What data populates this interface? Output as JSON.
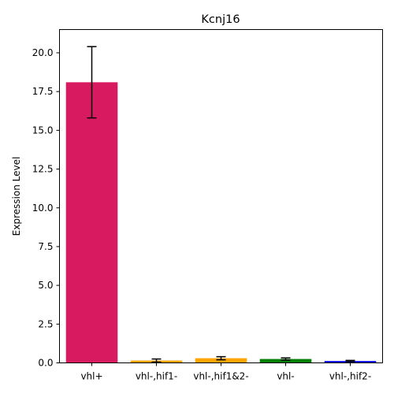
{
  "chart_data": {
    "type": "bar",
    "title": "Kcnj16",
    "xlabel": "",
    "ylabel": "Expression Level",
    "categories": [
      "vhl+",
      "vhl-,hif1-",
      "vhl-,hif1&2-",
      "vhl-",
      "vhl-,hif2-"
    ],
    "values": [
      18.1,
      0.15,
      0.3,
      0.25,
      0.12
    ],
    "errors": [
      2.3,
      0.1,
      0.1,
      0.07,
      0.04
    ],
    "colors": [
      "#d81b60",
      "#ffa500",
      "#ffa500",
      "#008000",
      "#0000ff"
    ],
    "ylim": [
      0,
      21.5
    ],
    "yticks": [
      0.0,
      2.5,
      5.0,
      7.5,
      10.0,
      12.5,
      15.0,
      17.5,
      20.0
    ],
    "ytick_labels": [
      "0.0",
      "2.5",
      "5.0",
      "7.5",
      "10.0",
      "12.5",
      "15.0",
      "17.5",
      "20.0"
    ],
    "grid": false,
    "legend": "none"
  }
}
